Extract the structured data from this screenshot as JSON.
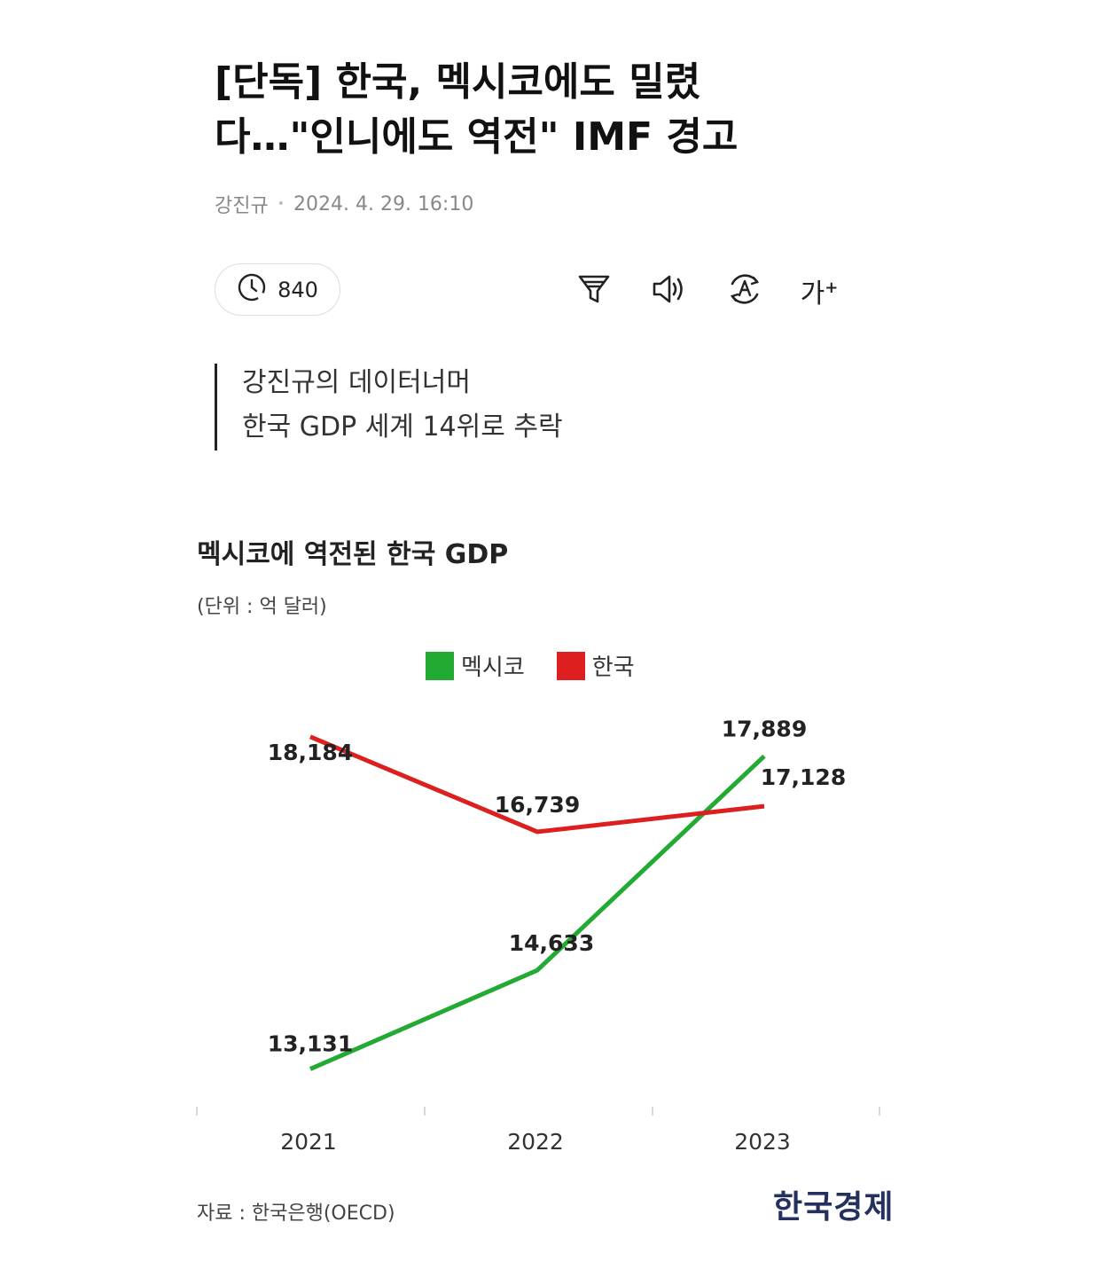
{
  "article": {
    "title_line1": "[단독] 한국, 멕시코에도 밀렸",
    "title_line2": "다…\"인니에도 역전\" IMF 경고",
    "author": "강진규",
    "datetime": "2024. 4. 29. 16:10",
    "view_count": "840"
  },
  "toolbar": {
    "icons": [
      "summary-filter-icon",
      "speaker-icon",
      "translate-icon",
      "font-size-icon"
    ],
    "font_label": "가",
    "font_plus": "+"
  },
  "summary": {
    "line1": "강진규의 데이터너머",
    "line2": "한국 GDP 세계 14위로 추락"
  },
  "figure": {
    "source": "자료 : 한국은행(OECD)",
    "brand": "한국경제"
  },
  "chart_data": {
    "type": "line",
    "title": "멕시코에 역전된 한국 GDP",
    "unit": "(단위 : 억 달러)",
    "categories": [
      "2021",
      "2022",
      "2023"
    ],
    "series": [
      {
        "name": "멕시코",
        "color": "#22aa33",
        "values": [
          13131,
          14633,
          17889
        ],
        "labels": [
          "13,131",
          "14,633",
          "17,889"
        ]
      },
      {
        "name": "한국",
        "color": "#dd1f1f",
        "values": [
          18184,
          16739,
          17128
        ],
        "labels": [
          "18,184",
          "16,739",
          "17,128"
        ]
      }
    ],
    "legend_position": "top-center",
    "grid": false
  },
  "colors": {
    "mexico": "#22aa33",
    "korea": "#dd1f1f",
    "brand": "#24305e"
  }
}
